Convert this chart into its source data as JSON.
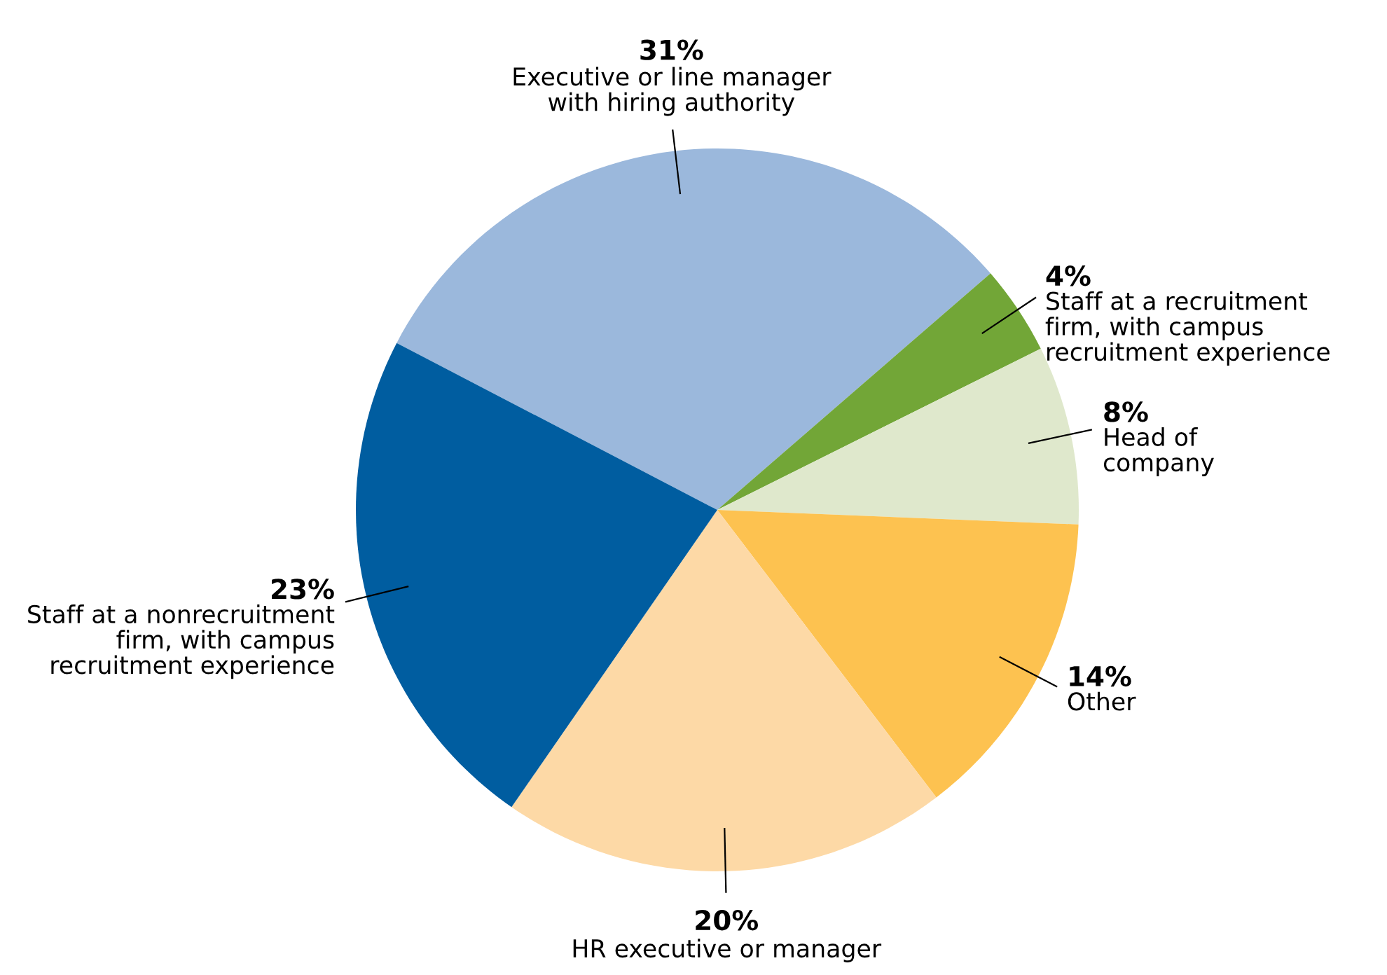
{
  "chart_data": {
    "type": "pie",
    "categories": [
      "Executive or line manager\nwith hiring authority",
      "Staff at a recruitment\nfirm, with campus\nrecruitment experience",
      "Head of\ncompany",
      "Other",
      "HR executive or manager",
      "Staff at a nonrecruitment\nfirm, with campus\nrecruitment experience"
    ],
    "values": [
      31,
      4,
      8,
      14,
      20,
      23
    ],
    "value_labels": [
      "31%",
      "4%",
      "8%",
      "14%",
      "20%",
      "23%"
    ],
    "colors": [
      "#9bb8dc",
      "#72a637",
      "#dfe8cc",
      "#fdc250",
      "#fdd9a6",
      "#005da0"
    ]
  }
}
